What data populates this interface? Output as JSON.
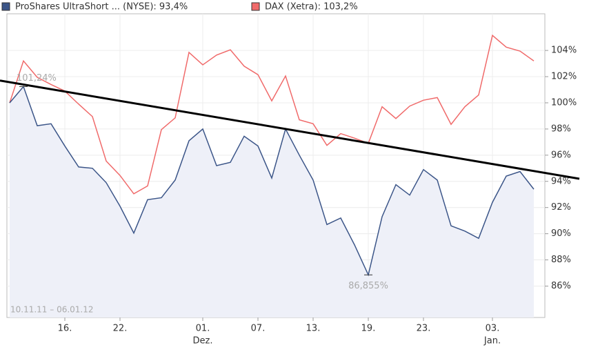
{
  "chart_data": {
    "type": "line",
    "categories": [
      null,
      null,
      null,
      null,
      "16.",
      null,
      null,
      null,
      "22.",
      null,
      null,
      null,
      null,
      null,
      "01.",
      null,
      null,
      null,
      "07.",
      null,
      null,
      null,
      "13.",
      null,
      null,
      null,
      "19.",
      null,
      null,
      null,
      "23.",
      null,
      null,
      null,
      null,
      "03.",
      null,
      null,
      null
    ],
    "x_sublabels": [
      null,
      null,
      null,
      null,
      null,
      null,
      null,
      null,
      null,
      null,
      null,
      null,
      null,
      null,
      "Dez.",
      null,
      null,
      null,
      null,
      null,
      null,
      null,
      null,
      null,
      null,
      null,
      null,
      null,
      null,
      null,
      null,
      null,
      null,
      null,
      null,
      "Jan.",
      null,
      null,
      null
    ],
    "series": [
      {
        "name": "ProShares UltraShort ... (NYSE): 93,4%",
        "color": "#3b5588",
        "fill": "#eef0f8",
        "values": [
          100,
          101.24,
          98.25,
          98.4,
          96.7,
          95.1,
          95.0,
          93.9,
          92.1,
          90.05,
          92.6,
          92.75,
          94.1,
          97.1,
          98.0,
          95.2,
          95.45,
          97.45,
          96.7,
          94.25,
          98.0,
          96.0,
          94.1,
          90.7,
          91.2,
          89.15,
          86.855,
          91.3,
          93.75,
          92.95,
          94.9,
          94.1,
          90.6,
          90.2,
          89.65,
          92.4,
          94.4,
          94.75,
          93.4
        ]
      },
      {
        "name": "DAX (Xetra): 103,2%",
        "color": "#f06a6a",
        "values": [
          100,
          103.2,
          101.95,
          101.4,
          100.9,
          99.9,
          98.95,
          95.55,
          94.45,
          93.05,
          93.65,
          97.95,
          98.85,
          103.85,
          102.9,
          103.65,
          104.05,
          102.8,
          102.15,
          100.15,
          102.05,
          98.7,
          98.4,
          96.75,
          97.65,
          97.3,
          96.9,
          99.7,
          98.8,
          99.75,
          100.2,
          100.4,
          98.35,
          99.7,
          100.6,
          105.15,
          104.25,
          103.95,
          103.2
        ]
      }
    ],
    "ylim": [
      83.6,
      106.8
    ],
    "yticks": [
      {
        "value": 86,
        "label": "86%"
      },
      {
        "value": 88,
        "label": "88%"
      },
      {
        "value": 90,
        "label": "90%"
      },
      {
        "value": 92,
        "label": "92%"
      },
      {
        "value": 94,
        "label": "94%"
      },
      {
        "value": 96,
        "label": "96%"
      },
      {
        "value": 98,
        "label": "98%"
      },
      {
        "value": 100,
        "label": "100%"
      },
      {
        "value": 102,
        "label": "102%"
      },
      {
        "value": 104,
        "label": "104%"
      }
    ],
    "grid": true,
    "annotations": [
      {
        "index": 1,
        "value": 101.24,
        "label": "101,24%"
      },
      {
        "index": 26,
        "value": 86.855,
        "label": "86,855%"
      }
    ],
    "trendline": [
      [
        -0.7,
        101.7
      ],
      [
        41.3,
        94.2
      ]
    ],
    "date_range": "10.11.11 – 06.01.12"
  }
}
